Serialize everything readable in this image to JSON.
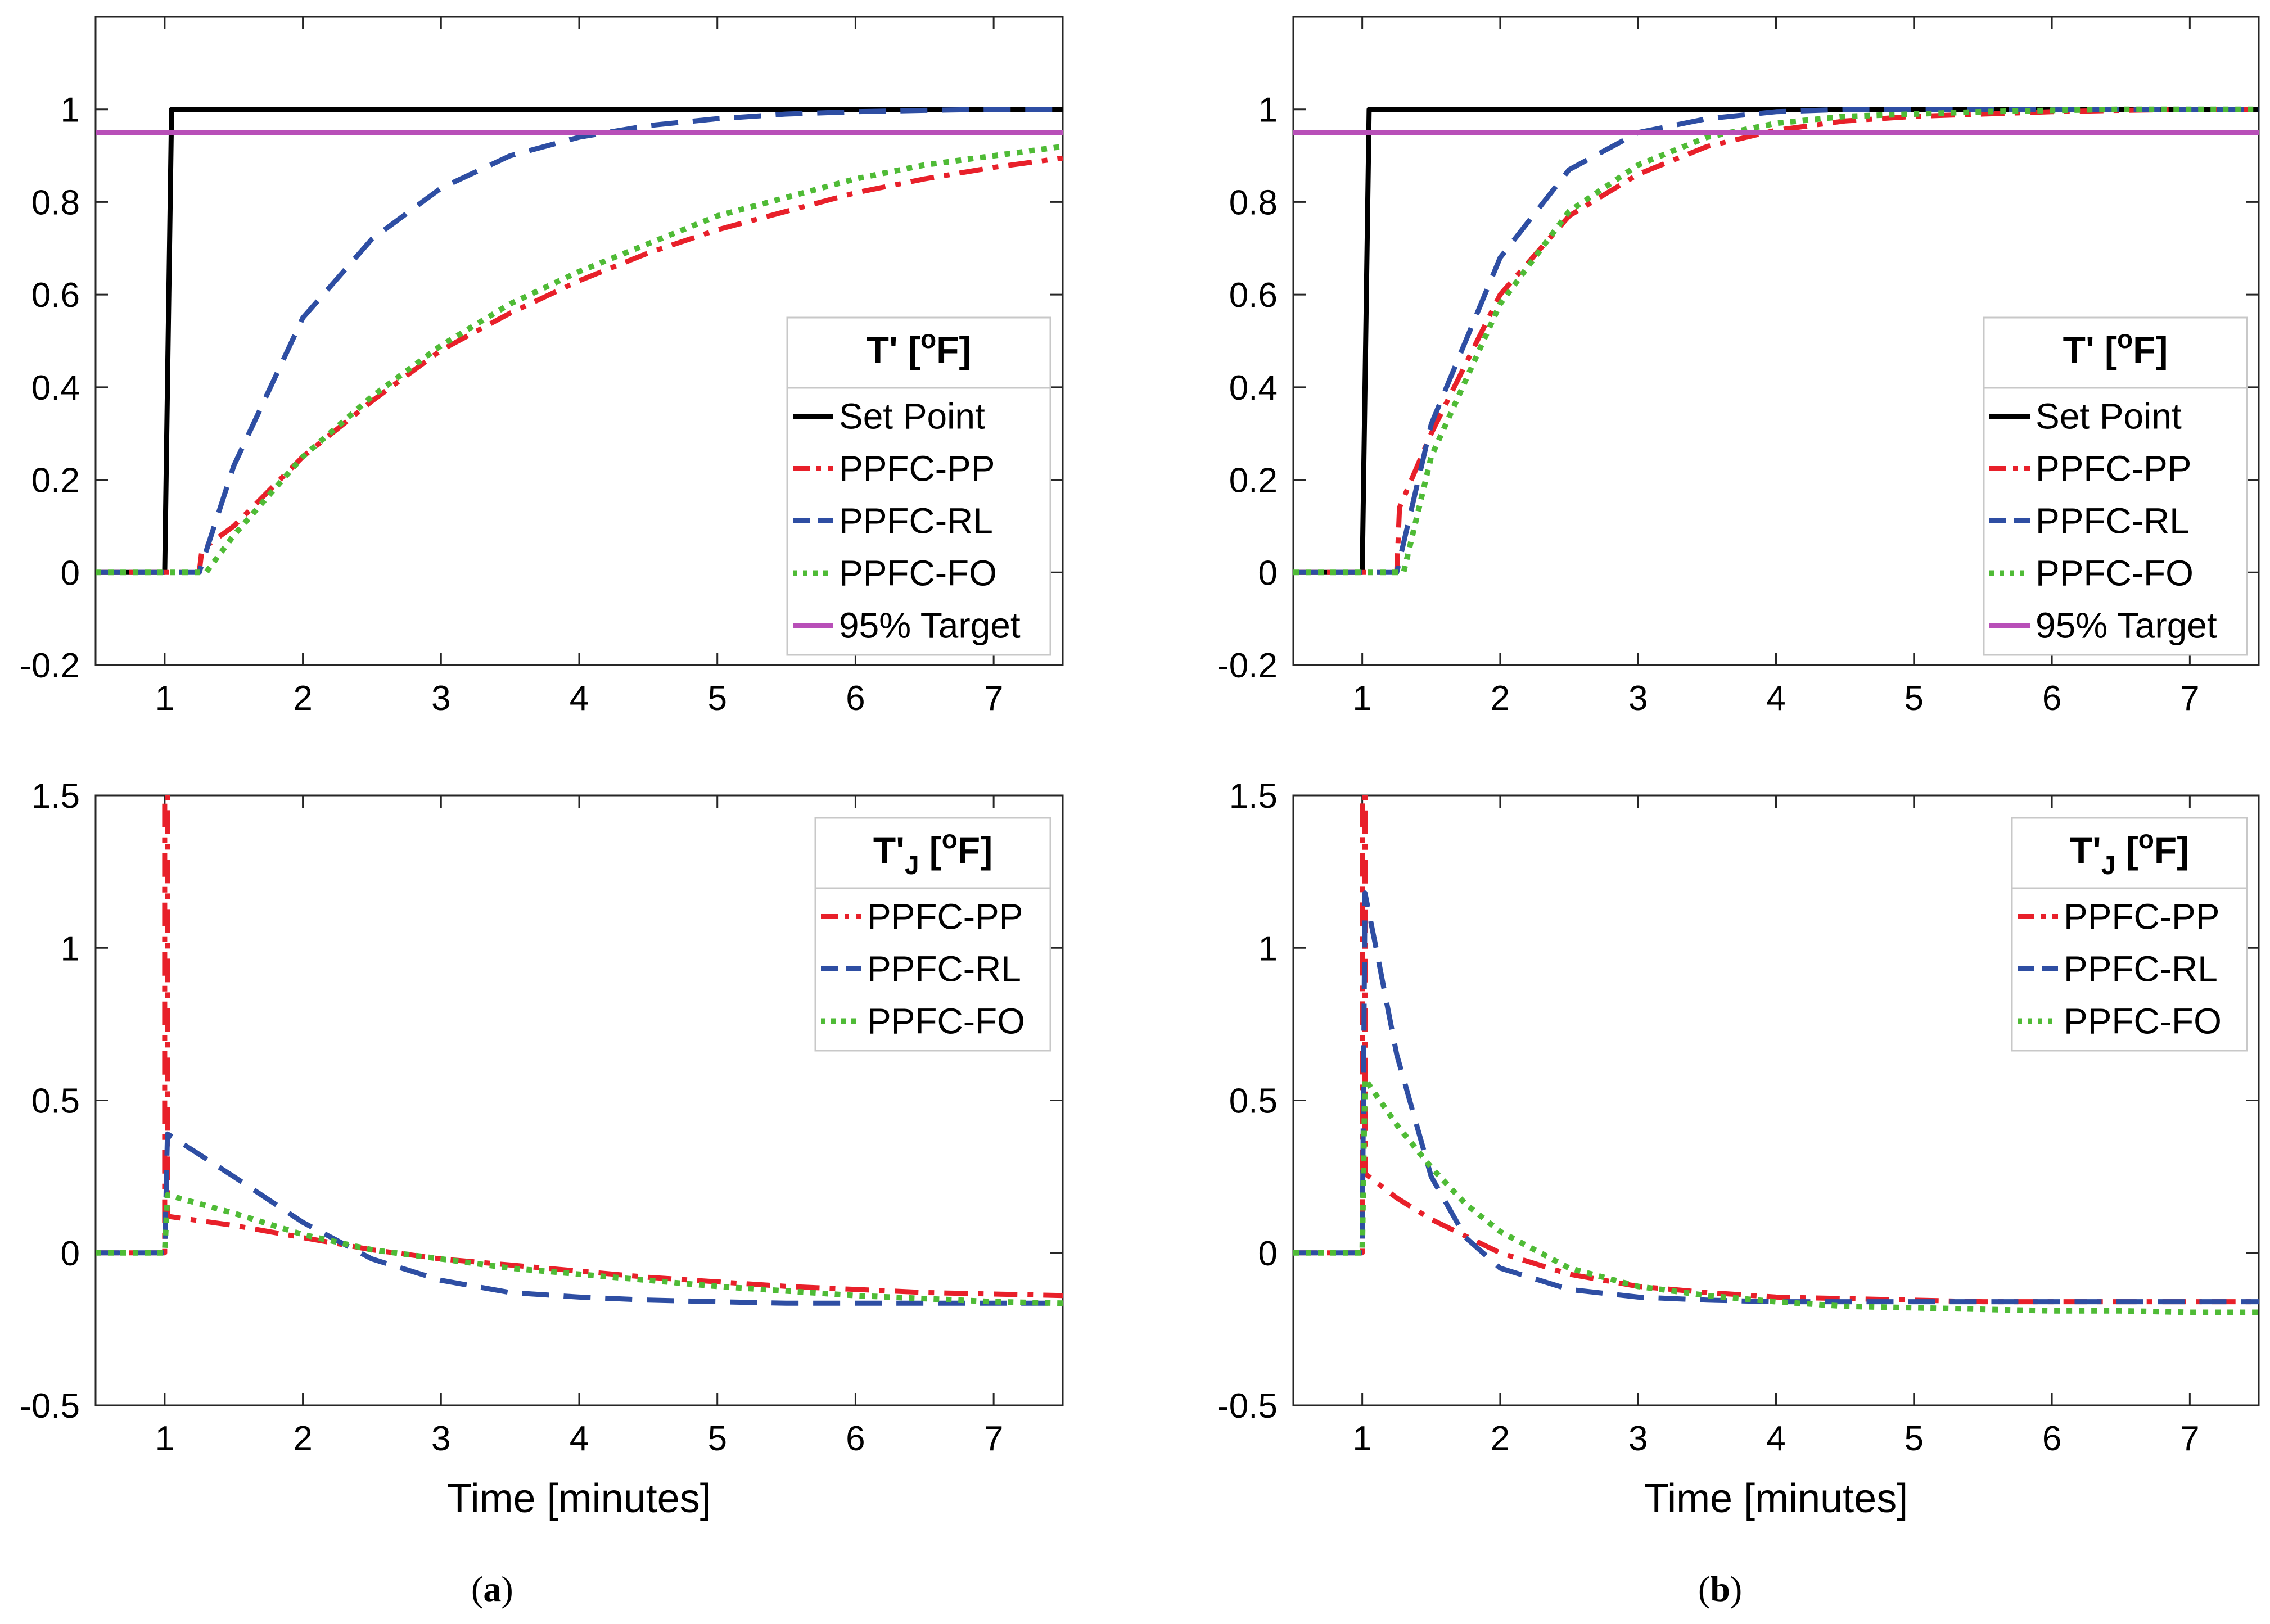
{
  "figure": {
    "caption_a": "a",
    "caption_b": "b",
    "xlabel_bottom": "Time [minutes]"
  },
  "colors": {
    "setpoint": "#000000",
    "pp": "#e8202a",
    "rl": "#2e4ea3",
    "fo": "#4fbb36",
    "target": "#b84fb8",
    "axis": "#262626",
    "legend_border": "#c8c8c8"
  },
  "chart_data": [
    {
      "id": "a-top",
      "type": "line",
      "panel": "a",
      "xlim": [
        0.5,
        7.5
      ],
      "ylim": [
        -0.2,
        1.2
      ],
      "xticks": [
        1,
        2,
        3,
        4,
        5,
        6,
        7
      ],
      "yticks": [
        -0.2,
        0,
        0.2,
        0.4,
        0.6,
        0.8,
        1
      ],
      "legend_title": "T' [",
      "legend_sup": "o",
      "legend_title_end": "F]",
      "legend_sub": "",
      "legend_position": "bottom-right",
      "xlabel": "",
      "series": [
        {
          "name": "Set Point",
          "style": "solid",
          "color_key": "setpoint",
          "x": [
            0.5,
            1.0,
            1.0,
            1.05,
            7.5
          ],
          "y": [
            0,
            0,
            0,
            1,
            1
          ]
        },
        {
          "name": "PPFC-PP",
          "style": "dashdot",
          "color_key": "pp",
          "x": [
            0.5,
            1.25,
            1.27,
            1.5,
            2,
            2.5,
            3,
            3.5,
            4,
            4.5,
            5,
            5.5,
            6,
            6.5,
            7,
            7.5
          ],
          "y": [
            0,
            0,
            0.05,
            0.1,
            0.25,
            0.37,
            0.48,
            0.56,
            0.63,
            0.69,
            0.74,
            0.78,
            0.82,
            0.85,
            0.875,
            0.895
          ]
        },
        {
          "name": "PPFC-RL",
          "style": "dashed",
          "color_key": "rl",
          "x": [
            0.5,
            1.25,
            1.5,
            2,
            2.5,
            3,
            3.5,
            4,
            4.5,
            5,
            5.5,
            6,
            6.5,
            7,
            7.5
          ],
          "y": [
            0,
            0,
            0.23,
            0.55,
            0.72,
            0.83,
            0.9,
            0.94,
            0.965,
            0.98,
            0.99,
            0.995,
            0.998,
            1.0,
            1.0
          ]
        },
        {
          "name": "PPFC-FO",
          "style": "dotted",
          "color_key": "fo",
          "x": [
            0.5,
            1.3,
            1.5,
            2,
            2.5,
            3,
            3.5,
            4,
            4.5,
            5,
            5.5,
            6,
            6.5,
            7,
            7.5
          ],
          "y": [
            0,
            0,
            0.08,
            0.25,
            0.38,
            0.49,
            0.58,
            0.65,
            0.71,
            0.77,
            0.81,
            0.85,
            0.88,
            0.9,
            0.92
          ]
        },
        {
          "name": "95% Target",
          "style": "solid",
          "color_key": "target",
          "x": [
            0.5,
            7.5
          ],
          "y": [
            0.95,
            0.95
          ]
        }
      ]
    },
    {
      "id": "b-top",
      "type": "line",
      "panel": "b",
      "xlim": [
        0.5,
        7.5
      ],
      "ylim": [
        -0.2,
        1.2
      ],
      "xticks": [
        1,
        2,
        3,
        4,
        5,
        6,
        7
      ],
      "yticks": [
        -0.2,
        0,
        0.2,
        0.4,
        0.6,
        0.8,
        1
      ],
      "legend_title": "T' [",
      "legend_sup": "o",
      "legend_title_end": "F]",
      "legend_sub": "",
      "legend_position": "bottom-right",
      "xlabel": "",
      "series": [
        {
          "name": "Set Point",
          "style": "solid",
          "color_key": "setpoint",
          "x": [
            0.5,
            1.0,
            1.0,
            1.05,
            7.5
          ],
          "y": [
            0,
            0,
            0,
            1,
            1
          ]
        },
        {
          "name": "PPFC-PP",
          "style": "dashdot",
          "color_key": "pp",
          "x": [
            0.5,
            1.25,
            1.27,
            1.5,
            2,
            2.5,
            3,
            3.5,
            4,
            4.5,
            5,
            5.5,
            6,
            6.5,
            7,
            7.5
          ],
          "y": [
            0,
            0,
            0.14,
            0.3,
            0.6,
            0.77,
            0.86,
            0.92,
            0.955,
            0.975,
            0.985,
            0.99,
            0.995,
            0.998,
            1.0,
            1.0
          ]
        },
        {
          "name": "PPFC-RL",
          "style": "dashed",
          "color_key": "rl",
          "x": [
            0.5,
            1.25,
            1.5,
            2,
            2.5,
            3,
            3.5,
            4,
            4.5,
            5,
            5.5,
            6,
            6.5,
            7,
            7.5
          ],
          "y": [
            0,
            0,
            0.32,
            0.68,
            0.87,
            0.95,
            0.98,
            0.995,
            1.0,
            1.0,
            1.0,
            1.0,
            1.0,
            1.0,
            1.0
          ]
        },
        {
          "name": "PPFC-FO",
          "style": "dotted",
          "color_key": "fo",
          "x": [
            0.5,
            1.3,
            1.5,
            2,
            2.5,
            3,
            3.5,
            4,
            4.5,
            5,
            5.5,
            6,
            6.5,
            7,
            7.5
          ],
          "y": [
            0,
            0,
            0.25,
            0.58,
            0.78,
            0.88,
            0.94,
            0.97,
            0.985,
            0.99,
            0.995,
            0.998,
            1.0,
            1.0,
            1.0
          ]
        },
        {
          "name": "95% Target",
          "style": "solid",
          "color_key": "target",
          "x": [
            0.5,
            7.5
          ],
          "y": [
            0.95,
            0.95
          ]
        }
      ]
    },
    {
      "id": "a-bottom",
      "type": "line",
      "panel": "a",
      "xlim": [
        0.5,
        7.5
      ],
      "ylim": [
        -0.5,
        1.5
      ],
      "xticks": [
        1,
        2,
        3,
        4,
        5,
        6,
        7
      ],
      "yticks": [
        -0.5,
        0,
        0.5,
        1,
        1.5
      ],
      "legend_title": "T'",
      "legend_sub": "J",
      "legend_sup": "o",
      "legend_title_end": "F]",
      "legend_position": "top-right",
      "xlabel": "Time [minutes]",
      "series": [
        {
          "name": "PPFC-PP",
          "style": "dashdot",
          "color_key": "pp",
          "x": [
            0.5,
            1.0,
            1.0,
            1.02,
            1.02,
            1.5,
            2,
            2.5,
            3,
            3.5,
            4,
            4.5,
            5,
            5.5,
            6,
            6.5,
            7,
            7.5
          ],
          "y": [
            0,
            0,
            1.5,
            1.5,
            0.12,
            0.09,
            0.05,
            0.01,
            -0.02,
            -0.04,
            -0.06,
            -0.08,
            -0.095,
            -0.11,
            -0.12,
            -0.13,
            -0.135,
            -0.14
          ]
        },
        {
          "name": "PPFC-RL",
          "style": "dashed",
          "color_key": "rl",
          "x": [
            0.5,
            1.0,
            1.02,
            1.5,
            2,
            2.5,
            3,
            3.5,
            4,
            4.5,
            5,
            5.5,
            6,
            6.5,
            7,
            7.5
          ],
          "y": [
            0,
            0,
            0.39,
            0.25,
            0.1,
            -0.02,
            -0.09,
            -0.13,
            -0.145,
            -0.155,
            -0.16,
            -0.165,
            -0.165,
            -0.165,
            -0.165,
            -0.165
          ]
        },
        {
          "name": "PPFC-FO",
          "style": "dotted",
          "color_key": "fo",
          "x": [
            0.5,
            1.0,
            1.02,
            1.5,
            2,
            2.5,
            3,
            3.5,
            4,
            4.5,
            5,
            5.5,
            6,
            6.5,
            7,
            7.5
          ],
          "y": [
            0,
            0,
            0.19,
            0.13,
            0.06,
            0.01,
            -0.02,
            -0.05,
            -0.07,
            -0.09,
            -0.11,
            -0.125,
            -0.14,
            -0.15,
            -0.16,
            -0.165
          ]
        }
      ]
    },
    {
      "id": "b-bottom",
      "type": "line",
      "panel": "b",
      "xlim": [
        0.5,
        7.5
      ],
      "ylim": [
        -0.5,
        1.5
      ],
      "xticks": [
        1,
        2,
        3,
        4,
        5,
        6,
        7
      ],
      "yticks": [
        -0.5,
        0,
        0.5,
        1,
        1.5
      ],
      "legend_title": "T'",
      "legend_sub": "J",
      "legend_sup": "o",
      "legend_title_end": "F]",
      "legend_position": "top-right",
      "xlabel": "Time [minutes]",
      "series": [
        {
          "name": "PPFC-PP",
          "style": "dashdot",
          "color_key": "pp",
          "x": [
            0.5,
            1.0,
            1.0,
            1.02,
            1.02,
            1.25,
            1.5,
            2,
            2.5,
            3,
            3.5,
            4,
            4.5,
            5,
            5.5,
            6,
            6.5,
            7,
            7.5
          ],
          "y": [
            0,
            0,
            1.5,
            1.5,
            0.26,
            0.18,
            0.11,
            0.0,
            -0.07,
            -0.11,
            -0.13,
            -0.145,
            -0.15,
            -0.155,
            -0.16,
            -0.16,
            -0.16,
            -0.16,
            -0.16
          ]
        },
        {
          "name": "PPFC-RL",
          "style": "dashed",
          "color_key": "rl",
          "x": [
            0.5,
            1.0,
            1.02,
            1.1,
            1.25,
            1.5,
            1.75,
            2,
            2.5,
            3,
            3.5,
            4,
            4.5,
            5,
            5.5,
            6,
            6.5,
            7,
            7.5
          ],
          "y": [
            0,
            0,
            1.18,
            1.0,
            0.65,
            0.25,
            0.05,
            -0.05,
            -0.12,
            -0.145,
            -0.155,
            -0.16,
            -0.16,
            -0.16,
            -0.16,
            -0.16,
            -0.16,
            -0.16,
            -0.16
          ]
        },
        {
          "name": "PPFC-FO",
          "style": "dotted",
          "color_key": "fo",
          "x": [
            0.5,
            1.0,
            1.02,
            1.25,
            1.5,
            1.75,
            2,
            2.5,
            3,
            3.5,
            4,
            4.5,
            5,
            5.5,
            6,
            6.5,
            7,
            7.5
          ],
          "y": [
            0,
            0,
            0.57,
            0.42,
            0.28,
            0.16,
            0.07,
            -0.05,
            -0.11,
            -0.14,
            -0.16,
            -0.175,
            -0.18,
            -0.185,
            -0.19,
            -0.19,
            -0.195,
            -0.195
          ]
        }
      ]
    }
  ]
}
